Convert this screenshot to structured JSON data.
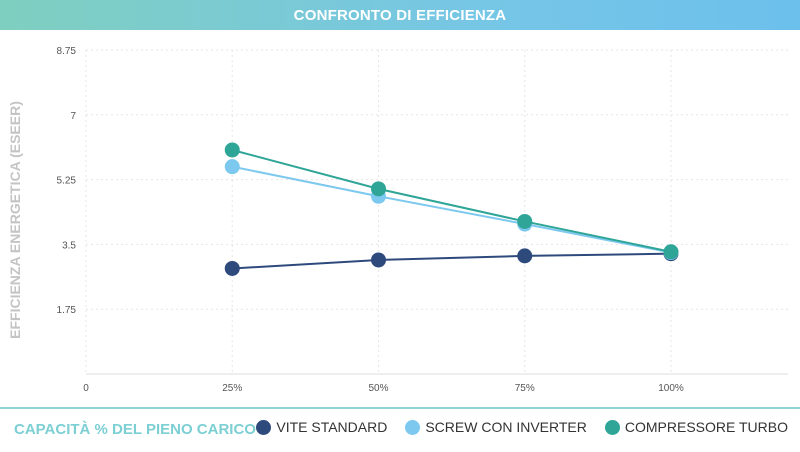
{
  "header": {
    "title": "CONFRONTO DI EFFICIENZA"
  },
  "footer": {
    "xlabel": "CAPACITÀ % DEL PIENO CARICO"
  },
  "chart_data": {
    "type": "line",
    "title": "CONFRONTO DI EFFICIENZA",
    "xlabel": "CAPACITÀ % DEL PIENO CARICO",
    "ylabel": "EFFICIENZA ENERGETICA (ESEER)",
    "x": [
      0,
      25,
      50,
      75,
      100
    ],
    "x_tick_labels": [
      "0",
      "25%",
      "50%",
      "75%",
      "100%"
    ],
    "xlim": [
      0,
      120
    ],
    "ylim": [
      0,
      8.75
    ],
    "y_ticks": [
      1.75,
      3.5,
      5.25,
      7,
      8.75
    ],
    "y_tick_labels": [
      "1.75",
      "3.5",
      "5.25",
      "7",
      "8.75"
    ],
    "grid": true,
    "legend_position": "bottom-right",
    "series": [
      {
        "name": "VITE STANDARD",
        "color": "#2e4a7d",
        "x": [
          25,
          50,
          75,
          100
        ],
        "values": [
          2.85,
          3.08,
          3.19,
          3.25
        ]
      },
      {
        "name": "SCREW CON INVERTER",
        "color": "#7cc8ee",
        "x": [
          25,
          50,
          75,
          100
        ],
        "values": [
          5.6,
          4.8,
          4.05,
          3.28
        ]
      },
      {
        "name": "COMPRESSORE TURBO",
        "color": "#2ea597",
        "x": [
          25,
          50,
          75,
          100
        ],
        "values": [
          6.05,
          5.0,
          4.12,
          3.3
        ]
      }
    ]
  }
}
